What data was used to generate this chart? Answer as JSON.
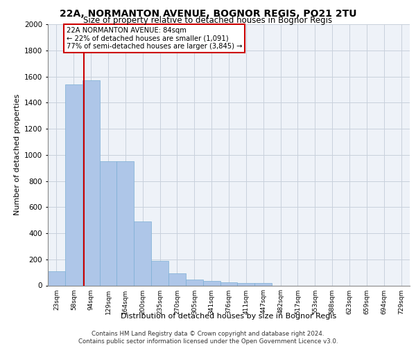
{
  "title1": "22A, NORMANTON AVENUE, BOGNOR REGIS, PO21 2TU",
  "title2": "Size of property relative to detached houses in Bognor Regis",
  "xlabel": "Distribution of detached houses by size in Bognor Regis",
  "ylabel": "Number of detached properties",
  "categories": [
    "23sqm",
    "58sqm",
    "94sqm",
    "129sqm",
    "164sqm",
    "200sqm",
    "235sqm",
    "270sqm",
    "305sqm",
    "341sqm",
    "376sqm",
    "411sqm",
    "447sqm",
    "482sqm",
    "517sqm",
    "553sqm",
    "588sqm",
    "623sqm",
    "659sqm",
    "694sqm",
    "729sqm"
  ],
  "values": [
    110,
    1540,
    1570,
    950,
    950,
    490,
    190,
    95,
    45,
    35,
    25,
    18,
    18,
    0,
    0,
    0,
    0,
    0,
    0,
    0,
    0
  ],
  "bar_color": "#aec6e8",
  "bar_edge_color": "#7baed4",
  "vline_x_idx": 1.575,
  "vline_color": "#cc0000",
  "annotation_text": "22A NORMANTON AVENUE: 84sqm\n← 22% of detached houses are smaller (1,091)\n77% of semi-detached houses are larger (3,845) →",
  "annotation_box_color": "#cc0000",
  "ylim": [
    0,
    2000
  ],
  "yticks": [
    0,
    200,
    400,
    600,
    800,
    1000,
    1200,
    1400,
    1600,
    1800,
    2000
  ],
  "footer_line1": "Contains HM Land Registry data © Crown copyright and database right 2024.",
  "footer_line2": "Contains public sector information licensed under the Open Government Licence v3.0.",
  "bg_color": "#eef2f8",
  "grid_color": "#c8d0dc"
}
